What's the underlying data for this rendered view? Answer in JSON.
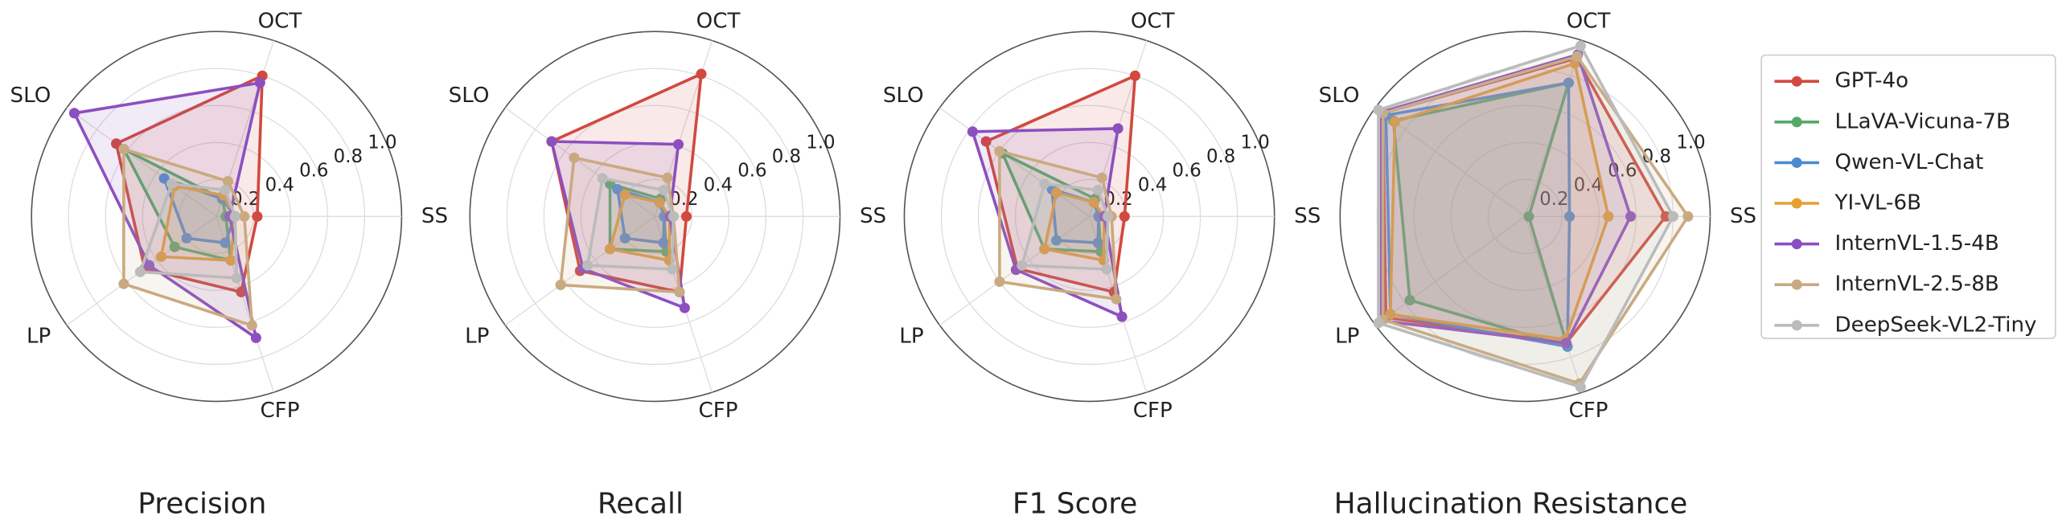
{
  "chart_data": [
    {
      "type": "radar",
      "title": "Precision",
      "categories": [
        "SS",
        "OCT",
        "SLO",
        "LP",
        "CFP"
      ],
      "ylim": [
        0,
        1
      ],
      "yticks": [
        0.2,
        0.4,
        0.6,
        0.8,
        {
          "value": 1,
          "label": "1.0"
        }
      ],
      "series": [
        {
          "name": "GPT-4o",
          "color": "#d1493f",
          "values": [
            0.22,
            0.8,
            0.67,
            0.48,
            0.43
          ]
        },
        {
          "name": "LLaVA-Vicuna-7B",
          "color": "#55a868",
          "values": [
            0.05,
            0.1,
            0.62,
            0.28,
            0.25
          ]
        },
        {
          "name": "Qwen-VL-Chat",
          "color": "#4c8bd0",
          "values": [
            0.1,
            0.1,
            0.35,
            0.2,
            0.15
          ]
        },
        {
          "name": "YI-VL-6B",
          "color": "#e6a030",
          "values": [
            0.1,
            0.12,
            0.28,
            0.37,
            0.25
          ]
        },
        {
          "name": "InternVL-1.5-4B",
          "color": "#8c4fbf",
          "values": [
            0.07,
            0.76,
            0.95,
            0.45,
            0.69
          ]
        },
        {
          "name": "InternVL-2.5-8B",
          "color": "#c9aa80",
          "values": [
            0.15,
            0.2,
            0.62,
            0.62,
            0.62
          ]
        },
        {
          "name": "DeepSeek-VL2-Tiny",
          "color": "#bbbbbb",
          "values": [
            0.1,
            0.15,
            0.3,
            0.51,
            0.35
          ]
        }
      ]
    },
    {
      "type": "radar",
      "title": "Recall",
      "categories": [
        "SS",
        "OCT",
        "SLO",
        "LP",
        "CFP"
      ],
      "ylim": [
        0,
        1
      ],
      "yticks": [
        0.2,
        0.4,
        0.6,
        0.8,
        {
          "value": 1,
          "label": "1.0"
        }
      ],
      "series": [
        {
          "name": "GPT-4o",
          "color": "#d1493f",
          "values": [
            0.17,
            0.81,
            0.69,
            0.5,
            0.43
          ]
        },
        {
          "name": "LLaVA-Vicuna-7B",
          "color": "#55a868",
          "values": [
            0.05,
            0.1,
            0.3,
            0.3,
            0.2
          ]
        },
        {
          "name": "Qwen-VL-Chat",
          "color": "#4c8bd0",
          "values": [
            0.05,
            0.08,
            0.25,
            0.2,
            0.15
          ]
        },
        {
          "name": "YI-VL-6B",
          "color": "#e6a030",
          "values": [
            0.08,
            0.08,
            0.2,
            0.3,
            0.25
          ]
        },
        {
          "name": "InternVL-1.5-4B",
          "color": "#8c4fbf",
          "values": [
            0.08,
            0.41,
            0.69,
            0.48,
            0.52
          ]
        },
        {
          "name": "InternVL-2.5-8B",
          "color": "#c9aa80",
          "values": [
            0.1,
            0.22,
            0.54,
            0.63,
            0.43
          ]
        },
        {
          "name": "DeepSeek-VL2-Tiny",
          "color": "#bbbbbb",
          "values": [
            0.1,
            0.15,
            0.35,
            0.45,
            0.3
          ]
        }
      ]
    },
    {
      "type": "radar",
      "title": "F1 Score",
      "categories": [
        "SS",
        "OCT",
        "SLO",
        "LP",
        "CFP"
      ],
      "ylim": [
        0,
        1
      ],
      "yticks": [
        0.2,
        0.4,
        0.6,
        0.8,
        {
          "value": 1,
          "label": "1.0"
        }
      ],
      "series": [
        {
          "name": "GPT-4o",
          "color": "#d1493f",
          "values": [
            0.19,
            0.8,
            0.69,
            0.48,
            0.43
          ]
        },
        {
          "name": "LLaVA-Vicuna-7B",
          "color": "#55a868",
          "values": [
            0.05,
            0.1,
            0.58,
            0.3,
            0.2
          ]
        },
        {
          "name": "Qwen-VL-Chat",
          "color": "#4c8bd0",
          "values": [
            0.05,
            0.08,
            0.25,
            0.22,
            0.15
          ]
        },
        {
          "name": "YI-VL-6B",
          "color": "#e6a030",
          "values": [
            0.08,
            0.08,
            0.22,
            0.3,
            0.25
          ]
        },
        {
          "name": "InternVL-1.5-4B",
          "color": "#8c4fbf",
          "values": [
            0.08,
            0.5,
            0.78,
            0.49,
            0.57
          ]
        },
        {
          "name": "InternVL-2.5-8B",
          "color": "#c9aa80",
          "values": [
            0.12,
            0.22,
            0.6,
            0.6,
            0.47
          ]
        },
        {
          "name": "DeepSeek-VL2-Tiny",
          "color": "#bbbbbb",
          "values": [
            0.1,
            0.15,
            0.3,
            0.45,
            0.3
          ]
        }
      ]
    },
    {
      "type": "radar",
      "title": "Hallucination Resistance",
      "categories": [
        "SS",
        "OCT",
        "SLO",
        "LP",
        "CFP"
      ],
      "ylim": [
        0,
        1
      ],
      "yticks": [
        0.2,
        0.4,
        0.6,
        0.8,
        {
          "value": 1,
          "label": "1.0"
        }
      ],
      "legend": "right",
      "series": [
        {
          "name": "GPT-4o",
          "color": "#d1493f",
          "values": [
            0.76,
            0.9,
            0.95,
            0.93,
            0.72
          ]
        },
        {
          "name": "LLaVA-Vicuna-7B",
          "color": "#55a868",
          "values": [
            0.02,
            0.76,
            0.88,
            0.77,
            0.74
          ]
        },
        {
          "name": "Qwen-VL-Chat",
          "color": "#4c8bd0",
          "values": [
            0.24,
            0.76,
            0.93,
            0.9,
            0.74
          ]
        },
        {
          "name": "YI-VL-6B",
          "color": "#e6a030",
          "values": [
            0.45,
            0.87,
            0.87,
            0.9,
            0.7
          ]
        },
        {
          "name": "InternVL-1.5-4B",
          "color": "#8c4fbf",
          "values": [
            0.57,
            0.92,
            0.96,
            0.96,
            0.72
          ]
        },
        {
          "name": "InternVL-2.5-8B",
          "color": "#c9aa80",
          "values": [
            0.88,
            0.91,
            0.95,
            0.95,
            0.95
          ]
        },
        {
          "name": "DeepSeek-VL2-Tiny",
          "color": "#bbbbbb",
          "values": [
            0.8,
            0.97,
            0.98,
            0.98,
            0.97
          ]
        }
      ]
    }
  ]
}
